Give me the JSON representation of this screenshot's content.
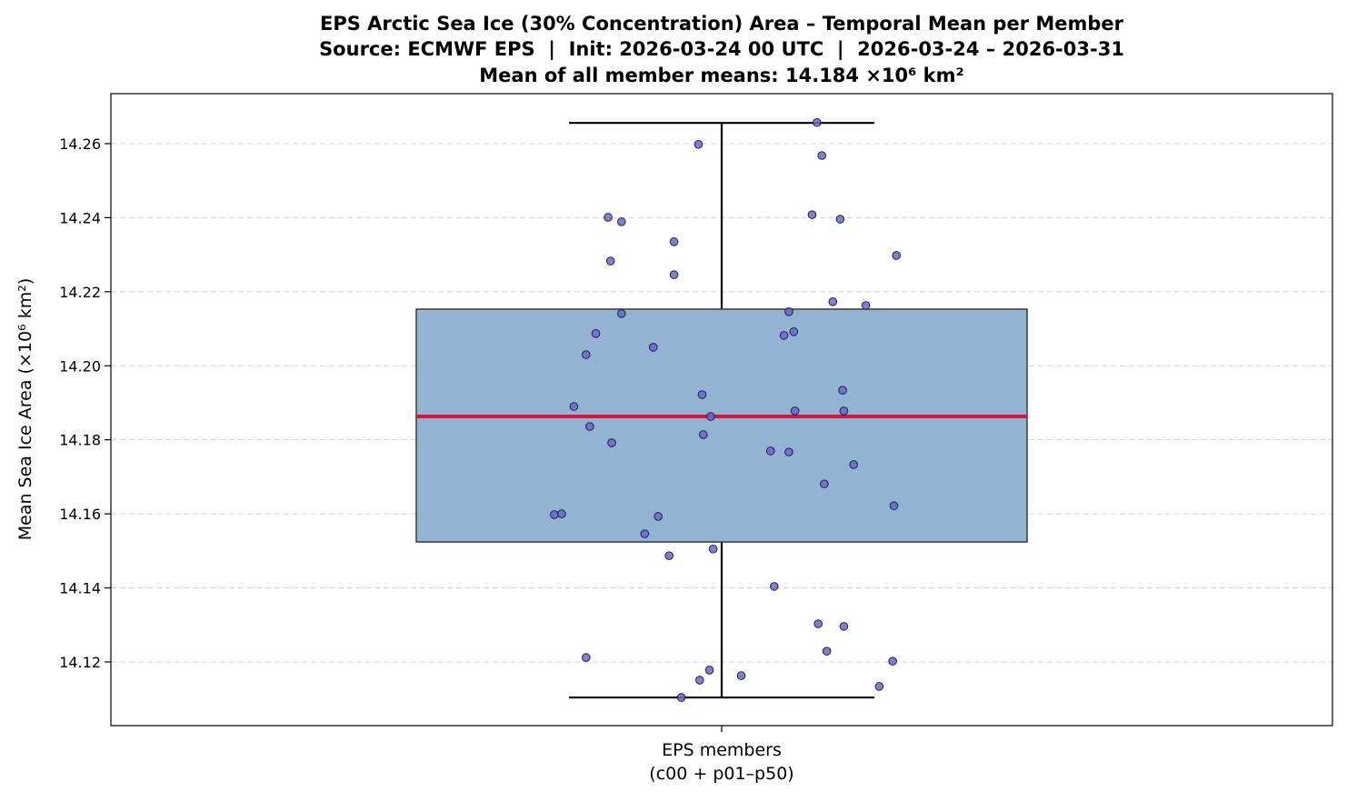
{
  "chart_data": {
    "type": "box",
    "title_lines": [
      "EPS Arctic Sea Ice (30% Concentration) Area – Temporal Mean per Member",
      "Source: ECMWF EPS  |  Init: 2026-03-24 00 UTC  |  2026-03-24 – 2026-03-31",
      "Mean of all member means: 14.184 ×10⁶ km²"
    ],
    "ylabel": "Mean Sea Ice Area (×10⁶ km²)",
    "xlabel_lines": [
      "EPS members",
      "(c00 + p01–p50)"
    ],
    "categories": [
      "EPS members"
    ],
    "ylim": [
      14.1028,
      14.2735
    ],
    "xlim": [
      0.5,
      1.5
    ],
    "yticks": [
      14.12,
      14.14,
      14.16,
      14.18,
      14.2,
      14.22,
      14.24,
      14.26
    ],
    "ytick_labels": [
      "14.12",
      "14.14",
      "14.16",
      "14.18",
      "14.20",
      "14.22",
      "14.24",
      "14.26"
    ],
    "grid": "y-dashed",
    "box": {
      "position": 1,
      "width": 0.5,
      "q1": 14.1524,
      "median": 14.1863,
      "q3": 14.2153,
      "whisker_low": 14.1104,
      "whisker_high": 14.2656
    },
    "colors": {
      "box_fill": "#92b3d1",
      "box_edge": "#3a3a3a",
      "median": "#dc143c",
      "point_fill": "#6b6bb8",
      "point_edge": "#1a1a6e",
      "grid": "#d0d0d0"
    },
    "points": [
      [
        0.078,
        14.2657
      ],
      [
        -0.019,
        14.2598
      ],
      [
        0.082,
        14.2568
      ],
      [
        -0.093,
        14.2401
      ],
      [
        -0.082,
        14.2389
      ],
      [
        0.074,
        14.2408
      ],
      [
        0.097,
        14.2396
      ],
      [
        -0.039,
        14.2335
      ],
      [
        -0.091,
        14.2283
      ],
      [
        0.143,
        14.2298
      ],
      [
        -0.039,
        14.2246
      ],
      [
        0.091,
        14.2173
      ],
      [
        0.118,
        14.2163
      ],
      [
        -0.082,
        14.2141
      ],
      [
        0.055,
        14.2146
      ],
      [
        -0.103,
        14.2087
      ],
      [
        0.051,
        14.2082
      ],
      [
        0.059,
        14.2092
      ],
      [
        -0.111,
        14.203
      ],
      [
        -0.056,
        14.205
      ],
      [
        -0.016,
        14.1922
      ],
      [
        0.099,
        14.1934
      ],
      [
        -0.121,
        14.189
      ],
      [
        0.06,
        14.1878
      ],
      [
        0.1,
        14.1878
      ],
      [
        -0.009,
        14.1863
      ],
      [
        -0.108,
        14.1836
      ],
      [
        -0.015,
        14.1814
      ],
      [
        -0.09,
        14.1792
      ],
      [
        0.04,
        14.177
      ],
      [
        0.055,
        14.1767
      ],
      [
        0.108,
        14.1733
      ],
      [
        0.084,
        14.1681
      ],
      [
        0.141,
        14.1622
      ],
      [
        -0.137,
        14.1598
      ],
      [
        -0.131,
        14.16
      ],
      [
        -0.052,
        14.1593
      ],
      [
        -0.063,
        14.1546
      ],
      [
        -0.007,
        14.1505
      ],
      [
        -0.043,
        14.1487
      ],
      [
        0.043,
        14.1404
      ],
      [
        0.079,
        14.1303
      ],
      [
        0.1,
        14.1296
      ],
      [
        -0.111,
        14.1212
      ],
      [
        0.086,
        14.1229
      ],
      [
        0.14,
        14.1202
      ],
      [
        -0.01,
        14.1178
      ],
      [
        -0.018,
        14.1151
      ],
      [
        0.016,
        14.1163
      ],
      [
        0.129,
        14.1134
      ],
      [
        -0.033,
        14.1104
      ]
    ]
  }
}
